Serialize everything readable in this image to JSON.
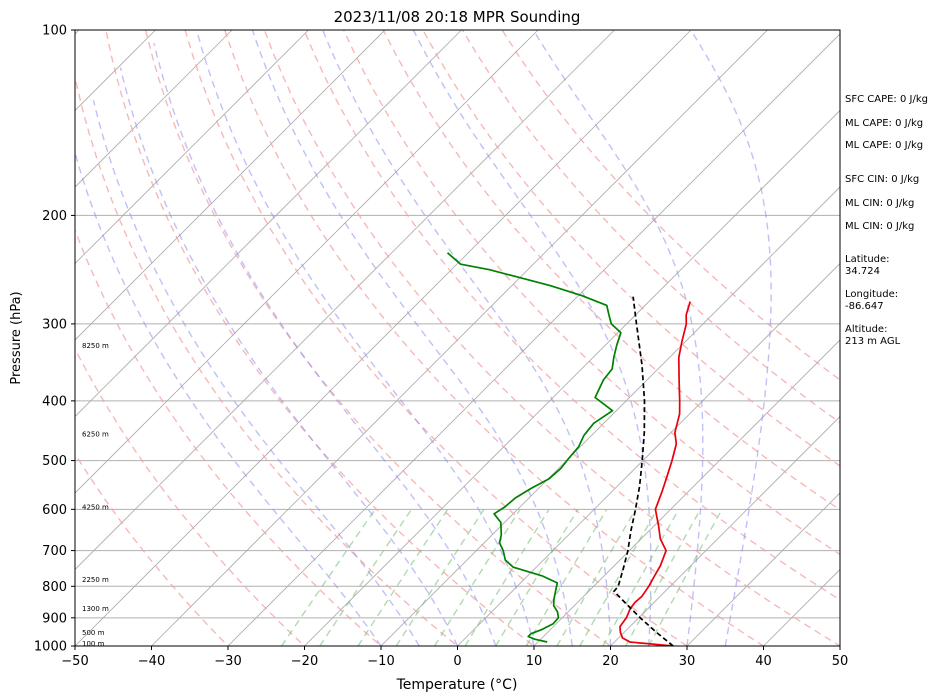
{
  "chart_data": {
    "type": "line",
    "subtype": "skew-T log-P sounding",
    "title": "2023/11/08 20:18 MPR Sounding",
    "xlabel": "Temperature (°C)",
    "ylabel": "Pressure (hPa)",
    "xlim": [
      -50,
      50
    ],
    "ylim": [
      1000,
      100
    ],
    "y_scale": "log",
    "x_ticks": [
      -50,
      -40,
      -30,
      -20,
      -10,
      0,
      10,
      20,
      30,
      40,
      50
    ],
    "x_tick_labels": [
      "−50",
      "−40",
      "−30",
      "−20",
      "−10",
      "0",
      "10",
      "20",
      "30",
      "40",
      "50"
    ],
    "y_ticks": [
      1000,
      900,
      800,
      700,
      600,
      500,
      400,
      300,
      200,
      100
    ],
    "y_tick_labels": [
      "1000",
      "900",
      "800",
      "700",
      "600",
      "500",
      "400",
      "300",
      "200",
      "100"
    ],
    "grid": "horizontal at pressure ticks",
    "isotherms_step_c": 10,
    "dry_adiabats_theta_k": [
      -30,
      -20,
      -10,
      0,
      10,
      20,
      30,
      40,
      50,
      60,
      70,
      80,
      90,
      100,
      110
    ],
    "moist_adiabats_c": [
      -10,
      -5,
      0,
      5,
      10,
      15,
      20,
      25,
      30,
      35
    ],
    "mixing_ratio_lines_c_at_1000": [
      -23,
      -18,
      -13,
      -8,
      -3,
      1,
      5,
      9,
      13,
      16,
      19,
      22,
      25
    ],
    "series": [
      {
        "color": "#e8000b",
        "style": "solid",
        "points": [
          [
            1000,
            28.2
          ],
          [
            985,
            22
          ],
          [
            970,
            20.5
          ],
          [
            950,
            19.5
          ],
          [
            930,
            18.7
          ],
          [
            900,
            18.4
          ],
          [
            870,
            17.7
          ],
          [
            850,
            17.5
          ],
          [
            830,
            17.6
          ],
          [
            800,
            17.2
          ],
          [
            770,
            16.6
          ],
          [
            740,
            16
          ],
          [
            700,
            14.8
          ],
          [
            670,
            12.5
          ],
          [
            640,
            10.7
          ],
          [
            600,
            8
          ],
          [
            560,
            6.5
          ],
          [
            530,
            5.2
          ],
          [
            500,
            3.8
          ],
          [
            470,
            2.2
          ],
          [
            450,
            0.5
          ],
          [
            420,
            -1.3
          ],
          [
            400,
            -3
          ],
          [
            370,
            -5.8
          ],
          [
            340,
            -8.8
          ],
          [
            320,
            -10.5
          ],
          [
            300,
            -12.2
          ],
          [
            290,
            -13.4
          ],
          [
            276,
            -14.6
          ]
        ]
      },
      {
        "color": "#008000",
        "style": "solid",
        "points": [
          [
            985,
            11.2
          ],
          [
            975,
            9.2
          ],
          [
            965,
            8
          ],
          [
            955,
            8
          ],
          [
            940,
            8.9
          ],
          [
            920,
            9.6
          ],
          [
            900,
            9.5
          ],
          [
            880,
            8.6
          ],
          [
            860,
            7.3
          ],
          [
            840,
            6.5
          ],
          [
            810,
            5.5
          ],
          [
            790,
            4.8
          ],
          [
            770,
            2
          ],
          [
            745,
            -3
          ],
          [
            725,
            -5
          ],
          [
            700,
            -6.5
          ],
          [
            680,
            -8
          ],
          [
            660,
            -8.8
          ],
          [
            630,
            -10.5
          ],
          [
            610,
            -12.5
          ],
          [
            595,
            -12
          ],
          [
            575,
            -11.8
          ],
          [
            555,
            -11
          ],
          [
            535,
            -9.9
          ],
          [
            515,
            -9.7
          ],
          [
            495,
            -10
          ],
          [
            475,
            -10.2
          ],
          [
            455,
            -11
          ],
          [
            435,
            -11.3
          ],
          [
            415,
            -10.5
          ],
          [
            395,
            -14.5
          ],
          [
            370,
            -15.7
          ],
          [
            355,
            -16
          ],
          [
            340,
            -17.3
          ],
          [
            325,
            -18.5
          ],
          [
            310,
            -19.6
          ],
          [
            300,
            -22
          ],
          [
            290,
            -23.5
          ],
          [
            280,
            -25
          ],
          [
            270,
            -29.5
          ],
          [
            260,
            -35
          ],
          [
            245,
            -45
          ],
          [
            240,
            -49.5
          ],
          [
            230,
            -52.7
          ]
        ]
      },
      {
        "color": "#000000",
        "style": "dashed",
        "points": [
          [
            1000,
            28.2
          ],
          [
            950,
            24.2
          ],
          [
            900,
            20.2
          ],
          [
            850,
            16.2
          ],
          [
            815,
            13.3
          ],
          [
            800,
            13.2
          ],
          [
            750,
            11.6
          ],
          [
            700,
            9.8
          ],
          [
            650,
            7.6
          ],
          [
            600,
            5.4
          ],
          [
            550,
            2.9
          ],
          [
            500,
            -0.1
          ],
          [
            450,
            -3.5
          ],
          [
            400,
            -7.6
          ],
          [
            350,
            -12.6
          ],
          [
            300,
            -18.7
          ],
          [
            271,
            -22.7
          ]
        ]
      }
    ],
    "altitude_markers": [
      "100 m",
      "500 m",
      "1300 m",
      "2250 m",
      "4250 m",
      "6250 m",
      "8250 m"
    ],
    "altitude_marker_pressures": [
      990,
      950,
      870,
      780,
      595,
      453,
      325
    ]
  },
  "annotations": {
    "sfc_cape": "SFC CAPE: 0 J/kg",
    "ml_cape_1": "ML CAPE: 0 J/kg",
    "ml_cape_2": "ML CAPE: 0 J/kg",
    "sfc_cin": "SFC CIN: 0 J/kg",
    "ml_cin_1": "ML CIN: 0 J/kg",
    "ml_cin_2": "ML CIN: 0 J/kg",
    "latitude_label": "Latitude:",
    "latitude_value": "34.724",
    "longitude_label": "Longitude:",
    "longitude_value": "-86.647",
    "altitude_label": "Altitude:",
    "altitude_value": "213 m AGL"
  }
}
